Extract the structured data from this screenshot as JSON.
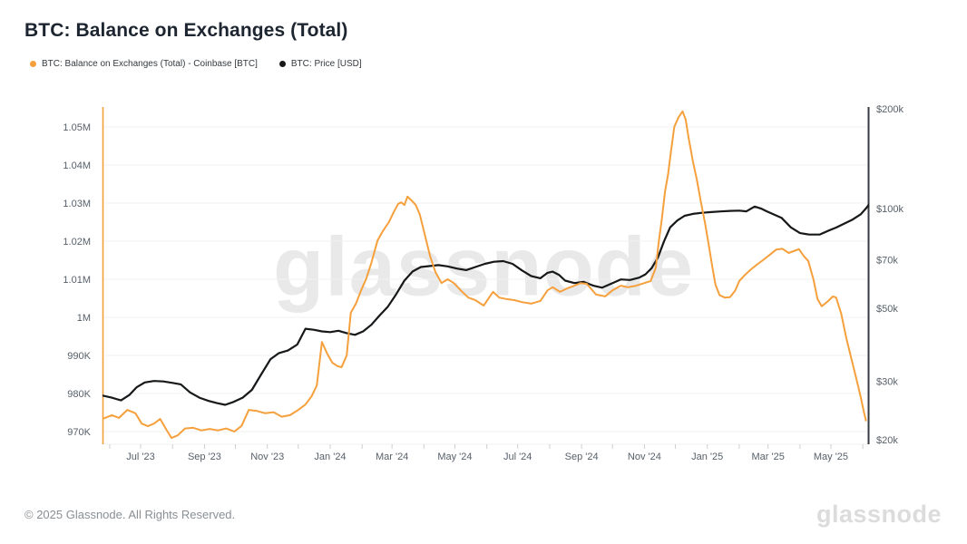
{
  "header": {
    "title": "BTC: Balance on Exchanges (Total)"
  },
  "legend": {
    "items": [
      {
        "label": "BTC: Balance on Exchanges (Total) - Coinbase [BTC]",
        "color": "#f5a03c"
      },
      {
        "label": "BTC: Price [USD]",
        "color": "#16181a"
      }
    ]
  },
  "watermark": {
    "text": "glassnode"
  },
  "footer": {
    "copyright": "© 2025 Glassnode. All Rights Reserved.",
    "logo": "glassnode"
  },
  "chart_data": {
    "type": "line",
    "title": "BTC: Balance on Exchanges (Total)",
    "grid": "horizontal-only",
    "x_axis": {
      "scale": "time",
      "domain": [
        "2023-05-25",
        "2025-06-07"
      ],
      "minor_tick_months": [
        "2023-06",
        "2023-07",
        "2023-08",
        "2023-09",
        "2023-10",
        "2023-11",
        "2023-12",
        "2024-01",
        "2024-02",
        "2024-03",
        "2024-04",
        "2024-05",
        "2024-06",
        "2024-07",
        "2024-08",
        "2024-09",
        "2024-10",
        "2024-11",
        "2024-12",
        "2025-01",
        "2025-02",
        "2025-03",
        "2025-04",
        "2025-05",
        "2025-06"
      ],
      "labels": [
        {
          "label": "Jul '23",
          "date": "2023-07-01"
        },
        {
          "label": "Sep '23",
          "date": "2023-09-01"
        },
        {
          "label": "Nov '23",
          "date": "2023-11-01"
        },
        {
          "label": "Jan '24",
          "date": "2024-01-01"
        },
        {
          "label": "Mar '24",
          "date": "2024-03-01"
        },
        {
          "label": "May '24",
          "date": "2024-05-01"
        },
        {
          "label": "Jul '24",
          "date": "2024-07-01"
        },
        {
          "label": "Sep '24",
          "date": "2024-09-01"
        },
        {
          "label": "Nov '24",
          "date": "2024-11-01"
        },
        {
          "label": "Jan '25",
          "date": "2025-01-01"
        },
        {
          "label": "Mar '25",
          "date": "2025-03-01"
        },
        {
          "label": "May '25",
          "date": "2025-05-01"
        }
      ]
    },
    "left_axis": {
      "scale": "linear",
      "color": "#f5a03c",
      "ticks": [
        {
          "label": "1.05M",
          "value": 1050000
        },
        {
          "label": "1.04M",
          "value": 1040000
        },
        {
          "label": "1.03M",
          "value": 1030000
        },
        {
          "label": "1.02M",
          "value": 1020000
        },
        {
          "label": "1.01M",
          "value": 1010000
        },
        {
          "label": "1M",
          "value": 1000000
        },
        {
          "label": "990K",
          "value": 990000
        },
        {
          "label": "980K",
          "value": 980000
        },
        {
          "label": "970K",
          "value": 970000
        }
      ]
    },
    "right_axis": {
      "scale": "log",
      "color": "#343b42",
      "ticks": [
        {
          "label": "$200k",
          "value": 200000
        },
        {
          "label": "$100k",
          "value": 100000
        },
        {
          "label": "$70k",
          "value": 70000
        },
        {
          "label": "$50k",
          "value": 50000
        },
        {
          "label": "$30k",
          "value": 30000
        },
        {
          "label": "$20k",
          "value": 20000
        }
      ]
    },
    "series": [
      {
        "name": "BTC: Balance on Exchanges (Total) - Coinbase [BTC]",
        "axis": "left",
        "color": "#f5a03c",
        "width": 2,
        "points": [
          [
            "2023-05-25",
            973300
          ],
          [
            "2023-06-03",
            974300
          ],
          [
            "2023-06-10",
            973600
          ],
          [
            "2023-06-18",
            975700
          ],
          [
            "2023-06-26",
            974800
          ],
          [
            "2023-07-02",
            972100
          ],
          [
            "2023-07-08",
            971400
          ],
          [
            "2023-07-14",
            972100
          ],
          [
            "2023-07-20",
            973300
          ],
          [
            "2023-07-26",
            970500
          ],
          [
            "2023-07-31",
            968300
          ],
          [
            "2023-08-06",
            969000
          ],
          [
            "2023-08-13",
            970800
          ],
          [
            "2023-08-21",
            971000
          ],
          [
            "2023-08-29",
            970300
          ],
          [
            "2023-09-06",
            970700
          ],
          [
            "2023-09-14",
            970300
          ],
          [
            "2023-09-22",
            970800
          ],
          [
            "2023-09-30",
            970000
          ],
          [
            "2023-10-07",
            971500
          ],
          [
            "2023-10-14",
            975700
          ],
          [
            "2023-10-22",
            975400
          ],
          [
            "2023-10-30",
            974800
          ],
          [
            "2023-11-07",
            975100
          ],
          [
            "2023-11-15",
            973900
          ],
          [
            "2023-11-23",
            974300
          ],
          [
            "2023-12-01",
            975700
          ],
          [
            "2023-12-08",
            977100
          ],
          [
            "2023-12-14",
            979300
          ],
          [
            "2023-12-19",
            982100
          ],
          [
            "2023-12-24",
            993500
          ],
          [
            "2023-12-29",
            990500
          ],
          [
            "2024-01-03",
            988100
          ],
          [
            "2024-01-08",
            987200
          ],
          [
            "2024-01-12",
            986900
          ],
          [
            "2024-01-17",
            990000
          ],
          [
            "2024-01-21",
            1001200
          ],
          [
            "2024-01-26",
            1003600
          ],
          [
            "2024-01-31",
            1007100
          ],
          [
            "2024-02-05",
            1010200
          ],
          [
            "2024-02-10",
            1014300
          ],
          [
            "2024-02-16",
            1020200
          ],
          [
            "2024-02-21",
            1022600
          ],
          [
            "2024-02-27",
            1025000
          ],
          [
            "2024-03-03",
            1027800
          ],
          [
            "2024-03-07",
            1029800
          ],
          [
            "2024-03-10",
            1030200
          ],
          [
            "2024-03-13",
            1029500
          ],
          [
            "2024-03-16",
            1031700
          ],
          [
            "2024-03-20",
            1030700
          ],
          [
            "2024-03-24",
            1029500
          ],
          [
            "2024-03-28",
            1027000
          ],
          [
            "2024-04-02",
            1021500
          ],
          [
            "2024-04-07",
            1016000
          ],
          [
            "2024-04-12",
            1012000
          ],
          [
            "2024-04-18",
            1009000
          ],
          [
            "2024-04-24",
            1010000
          ],
          [
            "2024-04-30",
            1009000
          ],
          [
            "2024-05-07",
            1007000
          ],
          [
            "2024-05-14",
            1005200
          ],
          [
            "2024-05-21",
            1004500
          ],
          [
            "2024-05-29",
            1003100
          ],
          [
            "2024-06-07",
            1006700
          ],
          [
            "2024-06-13",
            1005200
          ],
          [
            "2024-06-20",
            1004800
          ],
          [
            "2024-06-28",
            1004500
          ],
          [
            "2024-07-05",
            1004000
          ],
          [
            "2024-07-14",
            1003600
          ],
          [
            "2024-07-23",
            1004300
          ],
          [
            "2024-07-30",
            1007100
          ],
          [
            "2024-08-04",
            1007900
          ],
          [
            "2024-08-11",
            1006700
          ],
          [
            "2024-08-18",
            1007600
          ],
          [
            "2024-08-25",
            1008300
          ],
          [
            "2024-08-31",
            1009000
          ],
          [
            "2024-09-06",
            1008800
          ],
          [
            "2024-09-15",
            1006000
          ],
          [
            "2024-09-24",
            1005500
          ],
          [
            "2024-10-01",
            1007100
          ],
          [
            "2024-10-09",
            1008300
          ],
          [
            "2024-10-16",
            1007900
          ],
          [
            "2024-10-24",
            1008300
          ],
          [
            "2024-11-01",
            1009000
          ],
          [
            "2024-11-07",
            1009500
          ],
          [
            "2024-11-12",
            1013000
          ],
          [
            "2024-11-15",
            1020000
          ],
          [
            "2024-11-18",
            1026000
          ],
          [
            "2024-11-21",
            1033000
          ],
          [
            "2024-11-24",
            1037600
          ],
          [
            "2024-11-27",
            1044000
          ],
          [
            "2024-11-30",
            1050000
          ],
          [
            "2024-12-04",
            1052500
          ],
          [
            "2024-12-08",
            1054100
          ],
          [
            "2024-12-11",
            1052000
          ],
          [
            "2024-12-14",
            1047000
          ],
          [
            "2024-12-18",
            1041000
          ],
          [
            "2024-12-22",
            1036000
          ],
          [
            "2024-12-26",
            1030000
          ],
          [
            "2024-12-30",
            1024500
          ],
          [
            "2025-01-03",
            1018000
          ],
          [
            "2025-01-06",
            1013000
          ],
          [
            "2025-01-09",
            1008500
          ],
          [
            "2025-01-13",
            1005800
          ],
          [
            "2025-01-18",
            1005200
          ],
          [
            "2025-01-23",
            1005300
          ],
          [
            "2025-01-28",
            1007000
          ],
          [
            "2025-02-01",
            1009500
          ],
          [
            "2025-02-06",
            1011000
          ],
          [
            "2025-02-12",
            1012500
          ],
          [
            "2025-02-18",
            1013800
          ],
          [
            "2025-02-24",
            1015000
          ],
          [
            "2025-03-03",
            1016500
          ],
          [
            "2025-03-09",
            1017800
          ],
          [
            "2025-03-15",
            1018000
          ],
          [
            "2025-03-21",
            1016900
          ],
          [
            "2025-03-27",
            1017500
          ],
          [
            "2025-03-31",
            1017900
          ],
          [
            "2025-04-05",
            1016000
          ],
          [
            "2025-04-09",
            1014800
          ],
          [
            "2025-04-14",
            1010000
          ],
          [
            "2025-04-18",
            1004800
          ],
          [
            "2025-04-22",
            1002900
          ],
          [
            "2025-04-28",
            1004200
          ],
          [
            "2025-05-03",
            1005500
          ],
          [
            "2025-05-06",
            1005200
          ],
          [
            "2025-05-11",
            1001000
          ],
          [
            "2025-05-16",
            994500
          ],
          [
            "2025-05-21",
            989000
          ],
          [
            "2025-05-26",
            983500
          ],
          [
            "2025-05-30",
            979000
          ],
          [
            "2025-06-02",
            975200
          ],
          [
            "2025-06-04",
            972900
          ]
        ]
      },
      {
        "name": "BTC: Price [USD]",
        "axis": "right",
        "color": "#16181a",
        "width": 2.2,
        "points": [
          [
            "2023-05-25",
            27200
          ],
          [
            "2023-06-03",
            26800
          ],
          [
            "2023-06-12",
            26300
          ],
          [
            "2023-06-20",
            27300
          ],
          [
            "2023-06-27",
            28800
          ],
          [
            "2023-07-05",
            29800
          ],
          [
            "2023-07-14",
            30100
          ],
          [
            "2023-07-23",
            30000
          ],
          [
            "2023-08-01",
            29700
          ],
          [
            "2023-08-09",
            29400
          ],
          [
            "2023-08-18",
            27800
          ],
          [
            "2023-08-27",
            26800
          ],
          [
            "2023-09-05",
            26200
          ],
          [
            "2023-09-13",
            25800
          ],
          [
            "2023-09-21",
            25500
          ],
          [
            "2023-09-29",
            26000
          ],
          [
            "2023-10-08",
            26800
          ],
          [
            "2023-10-17",
            28300
          ],
          [
            "2023-10-26",
            31500
          ],
          [
            "2023-11-04",
            35000
          ],
          [
            "2023-11-12",
            36500
          ],
          [
            "2023-11-21",
            37200
          ],
          [
            "2023-11-30",
            38800
          ],
          [
            "2023-12-08",
            43300
          ],
          [
            "2023-12-16",
            43000
          ],
          [
            "2023-12-24",
            42500
          ],
          [
            "2024-01-01",
            42300
          ],
          [
            "2024-01-09",
            42700
          ],
          [
            "2024-01-17",
            42000
          ],
          [
            "2024-01-25",
            41500
          ],
          [
            "2024-02-02",
            42500
          ],
          [
            "2024-02-10",
            44500
          ],
          [
            "2024-02-18",
            47500
          ],
          [
            "2024-02-26",
            50500
          ],
          [
            "2024-03-05",
            55000
          ],
          [
            "2024-03-13",
            60500
          ],
          [
            "2024-03-21",
            64500
          ],
          [
            "2024-03-29",
            66500
          ],
          [
            "2024-04-07",
            67000
          ],
          [
            "2024-04-15",
            67400
          ],
          [
            "2024-04-24",
            66800
          ],
          [
            "2024-05-03",
            65800
          ],
          [
            "2024-05-12",
            65100
          ],
          [
            "2024-05-21",
            66500
          ],
          [
            "2024-05-30",
            68000
          ],
          [
            "2024-06-08",
            69000
          ],
          [
            "2024-06-17",
            69300
          ],
          [
            "2024-06-26",
            68000
          ],
          [
            "2024-07-05",
            65000
          ],
          [
            "2024-07-14",
            62500
          ],
          [
            "2024-07-23",
            61500
          ],
          [
            "2024-07-30",
            63900
          ],
          [
            "2024-08-04",
            64400
          ],
          [
            "2024-08-10",
            63000
          ],
          [
            "2024-08-16",
            60500
          ],
          [
            "2024-08-25",
            59500
          ],
          [
            "2024-09-03",
            60000
          ],
          [
            "2024-09-12",
            58500
          ],
          [
            "2024-09-21",
            57600
          ],
          [
            "2024-09-30",
            59300
          ],
          [
            "2024-10-09",
            61000
          ],
          [
            "2024-10-18",
            60800
          ],
          [
            "2024-10-27",
            61800
          ],
          [
            "2024-11-02",
            63200
          ],
          [
            "2024-11-08",
            66000
          ],
          [
            "2024-11-14",
            71000
          ],
          [
            "2024-11-20",
            79500
          ],
          [
            "2024-11-26",
            87700
          ],
          [
            "2024-12-03",
            92000
          ],
          [
            "2024-12-10",
            95000
          ],
          [
            "2024-12-18",
            96300
          ],
          [
            "2024-12-27",
            97000
          ],
          [
            "2025-01-05",
            97500
          ],
          [
            "2025-01-14",
            97900
          ],
          [
            "2025-01-23",
            98300
          ],
          [
            "2025-02-01",
            98500
          ],
          [
            "2025-02-08",
            98000
          ],
          [
            "2025-02-16",
            101300
          ],
          [
            "2025-02-22",
            100000
          ],
          [
            "2025-02-28",
            97900
          ],
          [
            "2025-03-06",
            96000
          ],
          [
            "2025-03-14",
            93700
          ],
          [
            "2025-03-23",
            87700
          ],
          [
            "2025-04-01",
            84200
          ],
          [
            "2025-04-10",
            83400
          ],
          [
            "2025-04-20",
            83400
          ],
          [
            "2025-04-28",
            85500
          ],
          [
            "2025-05-06",
            87500
          ],
          [
            "2025-05-14",
            90000
          ],
          [
            "2025-05-22",
            92500
          ],
          [
            "2025-05-30",
            96000
          ],
          [
            "2025-06-04",
            100000
          ],
          [
            "2025-06-07",
            102800
          ]
        ]
      }
    ]
  }
}
